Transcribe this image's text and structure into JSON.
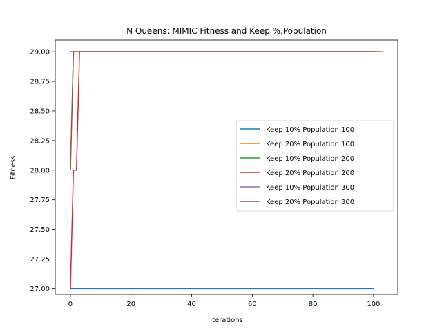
{
  "chart_data": {
    "type": "line",
    "title": "N Queens: MIMIC Fitness and Keep %,Population",
    "xlabel": "Iterations",
    "ylabel": "Fitness",
    "xlim": [
      -5,
      108
    ],
    "ylim": [
      26.95,
      29.1
    ],
    "xticks": [
      0,
      20,
      40,
      60,
      80,
      100
    ],
    "xtick_labels": [
      "0",
      "20",
      "40",
      "60",
      "80",
      "100"
    ],
    "yticks": [
      27.0,
      27.25,
      27.5,
      27.75,
      28.0,
      28.25,
      28.5,
      28.75,
      29.0
    ],
    "ytick_labels": [
      "27.00",
      "27.25",
      "27.50",
      "27.75",
      "28.00",
      "28.25",
      "28.50",
      "28.75",
      "29.00"
    ],
    "grid": false,
    "legend_position": "center-right",
    "series": [
      {
        "name": "Keep 10% Population 100",
        "color": "#1f77b4",
        "x": [
          0,
          100
        ],
        "y": [
          27.0,
          27.0
        ]
      },
      {
        "name": "Keep 20% Population 100",
        "color": "#ff7f0e",
        "x": [
          0,
          1,
          2,
          102
        ],
        "y": [
          28.0,
          29.0,
          29.0,
          29.0
        ]
      },
      {
        "name": "Keep 10% Population 200",
        "color": "#2ca02c",
        "x": [
          0,
          100
        ],
        "y": [
          29.0,
          29.0
        ]
      },
      {
        "name": "Keep 20% Population 200",
        "color": "#d62728",
        "x": [
          0,
          1,
          2,
          3,
          103
        ],
        "y": [
          27.0,
          28.0,
          28.0,
          29.0,
          29.0
        ]
      },
      {
        "name": "Keep 10% Population 300",
        "color": "#9467bd",
        "x": [
          0,
          100
        ],
        "y": [
          29.0,
          29.0
        ]
      },
      {
        "name": "Keep 20% Population 300",
        "color": "#8c564b",
        "x": [
          0,
          1,
          101
        ],
        "y": [
          28.0,
          29.0,
          29.0
        ]
      }
    ]
  }
}
